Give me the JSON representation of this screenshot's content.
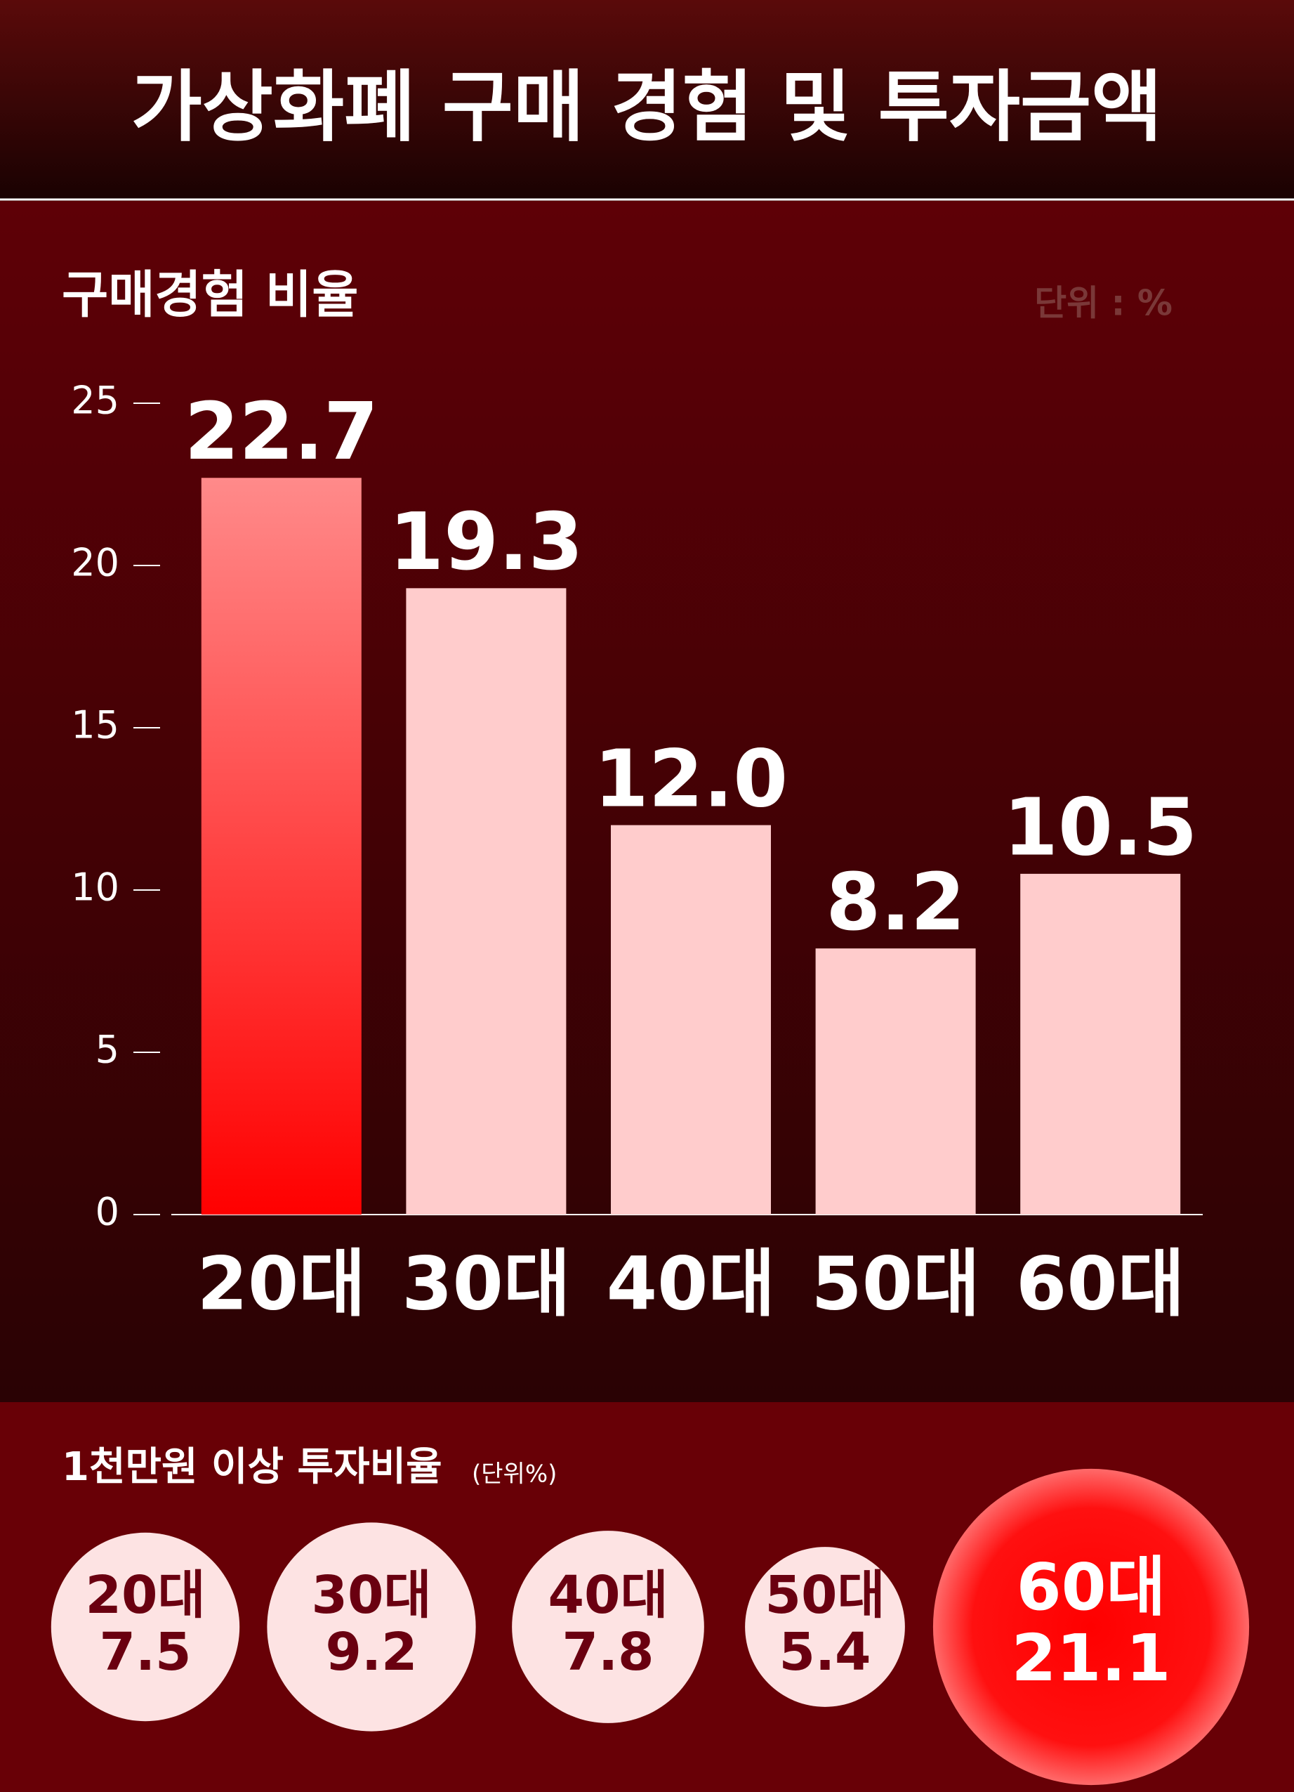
{
  "title": "가상화폐 구매 경험 및 투자금액",
  "chart_data": [
    {
      "type": "bar",
      "title": "구매경험 비율",
      "unit_note": "단위 : %",
      "categories": [
        "20대",
        "30대",
        "40대",
        "50대",
        "60대"
      ],
      "values": [
        22.7,
        19.3,
        12.0,
        8.2,
        10.5
      ],
      "value_labels": [
        "22.7",
        "19.3",
        "12.0",
        "8.2",
        "10.5"
      ],
      "color": "#ffcccc",
      "highlight_color": "#ff0000",
      "highlight": 0,
      "ylim": [
        0,
        25
      ],
      "yticks": [
        0,
        5,
        10,
        15,
        20,
        25
      ]
    },
    {
      "type": "bubble",
      "title": "1천만원 이상 투자비율",
      "unit_note": "(단위%)",
      "categories": [
        "20대",
        "30대",
        "40대",
        "50대",
        "60대"
      ],
      "values": [
        7.5,
        9.2,
        7.8,
        5.4,
        21.1
      ],
      "color": "#fde3e3",
      "highlight_color": "#ff0000",
      "highlight": 4
    }
  ]
}
